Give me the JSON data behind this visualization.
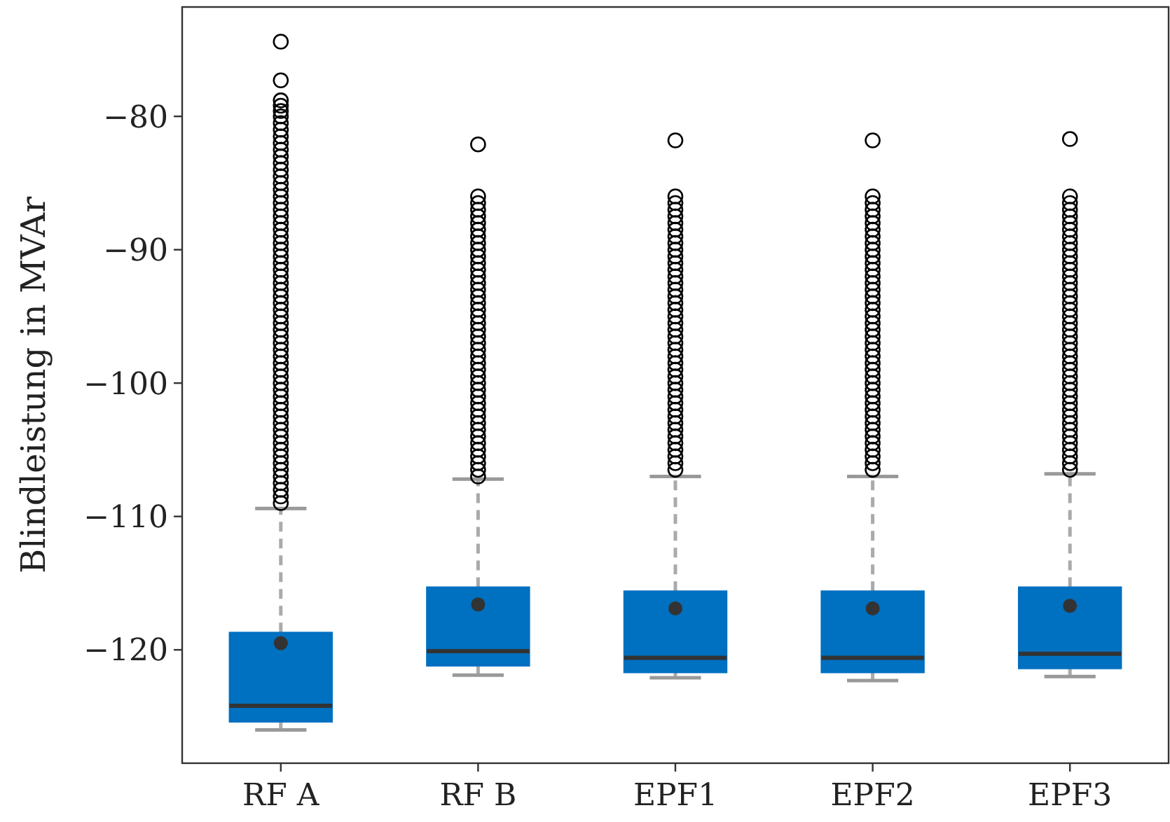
{
  "chart_data": {
    "type": "box",
    "ylabel": "Blindleistung in MVAr",
    "categories": [
      "RF A",
      "RF B",
      "EPF1",
      "EPF2",
      "EPF3"
    ],
    "ylim": [
      -128.5,
      -71.8
    ],
    "yticks": [
      {
        "value": -80,
        "label": "−80"
      },
      {
        "value": -90,
        "label": "−90"
      },
      {
        "value": -100,
        "label": "−100"
      },
      {
        "value": -110,
        "label": "−110"
      },
      {
        "value": -120,
        "label": "−120"
      }
    ],
    "grid": false,
    "series": [
      {
        "color": "#0070c0",
        "boxes": [
          {
            "low": -126.0,
            "q1": -125.4,
            "median": -124.2,
            "q3": -118.7,
            "high": -109.4,
            "mean": -119.5,
            "outliers": [
              -74.4,
              -77.3,
              -78.8,
              -79.2,
              -79.6,
              -80,
              -80.5,
              -81,
              -81.5,
              -82,
              -82.5,
              -83,
              -83.5,
              -84,
              -84.5,
              -85,
              -85.5,
              -86,
              -86.5,
              -87,
              -87.5,
              -88,
              -88.5,
              -89,
              -89.5,
              -90,
              -90.5,
              -91,
              -91.5,
              -92,
              -92.5,
              -93,
              -93.5,
              -94,
              -94.5,
              -95,
              -95.5,
              -96,
              -96.5,
              -97,
              -97.5,
              -98,
              -98.5,
              -99,
              -99.5,
              -100,
              -100.5,
              -101,
              -101.5,
              -102,
              -102.5,
              -103,
              -103.5,
              -104,
              -104.5,
              -105,
              -105.5,
              -106,
              -106.5,
              -107,
              -107.5,
              -108,
              -108.5,
              -109
            ]
          },
          {
            "low": -121.9,
            "q1": -121.2,
            "median": -120.1,
            "q3": -115.3,
            "high": -107.2,
            "mean": -116.6,
            "outliers": [
              -82.1,
              -86,
              -86.5,
              -87,
              -87.5,
              -88,
              -88.5,
              -89,
              -89.5,
              -90,
              -90.5,
              -91,
              -91.5,
              -92,
              -92.5,
              -93,
              -93.5,
              -94,
              -94.5,
              -95,
              -95.5,
              -96,
              -96.5,
              -97,
              -97.5,
              -98,
              -98.5,
              -99,
              -99.5,
              -100,
              -100.5,
              -101,
              -101.5,
              -102,
              -102.5,
              -103,
              -103.5,
              -104,
              -104.5,
              -105,
              -105.5,
              -106,
              -106.5,
              -107
            ]
          },
          {
            "low": -122.1,
            "q1": -121.7,
            "median": -120.6,
            "q3": -115.6,
            "high": -107.0,
            "mean": -116.9,
            "outliers": [
              -81.8,
              -86,
              -86.5,
              -87,
              -87.5,
              -88,
              -88.5,
              -89,
              -89.5,
              -90,
              -90.5,
              -91,
              -91.5,
              -92,
              -92.5,
              -93,
              -93.5,
              -94,
              -94.5,
              -95,
              -95.5,
              -96,
              -96.5,
              -97,
              -97.5,
              -98,
              -98.5,
              -99,
              -99.5,
              -100,
              -100.5,
              -101,
              -101.5,
              -102,
              -102.5,
              -103,
              -103.5,
              -104,
              -104.5,
              -105,
              -105.5,
              -106,
              -106.5
            ]
          },
          {
            "low": -122.3,
            "q1": -121.7,
            "median": -120.6,
            "q3": -115.6,
            "high": -107.0,
            "mean": -116.9,
            "outliers": [
              -81.8,
              -86,
              -86.5,
              -87,
              -87.5,
              -88,
              -88.5,
              -89,
              -89.5,
              -90,
              -90.5,
              -91,
              -91.5,
              -92,
              -92.5,
              -93,
              -93.5,
              -94,
              -94.5,
              -95,
              -95.5,
              -96,
              -96.5,
              -97,
              -97.5,
              -98,
              -98.5,
              -99,
              -99.5,
              -100,
              -100.5,
              -101,
              -101.5,
              -102,
              -102.5,
              -103,
              -103.5,
              -104,
              -104.5,
              -105,
              -105.5,
              -106,
              -106.5
            ]
          },
          {
            "low": -122.0,
            "q1": -121.4,
            "median": -120.3,
            "q3": -115.3,
            "high": -106.8,
            "mean": -116.7,
            "outliers": [
              -81.7,
              -86,
              -86.5,
              -87,
              -87.5,
              -88,
              -88.5,
              -89,
              -89.5,
              -90,
              -90.5,
              -91,
              -91.5,
              -92,
              -92.5,
              -93,
              -93.5,
              -94,
              -94.5,
              -95,
              -95.5,
              -96,
              -96.5,
              -97,
              -97.5,
              -98,
              -98.5,
              -99,
              -99.5,
              -100,
              -100.5,
              -101,
              -101.5,
              -102,
              -102.5,
              -103,
              -103.5,
              -104,
              -104.5,
              -105,
              -105.5,
              -106,
              -106.5
            ]
          }
        ]
      }
    ]
  }
}
